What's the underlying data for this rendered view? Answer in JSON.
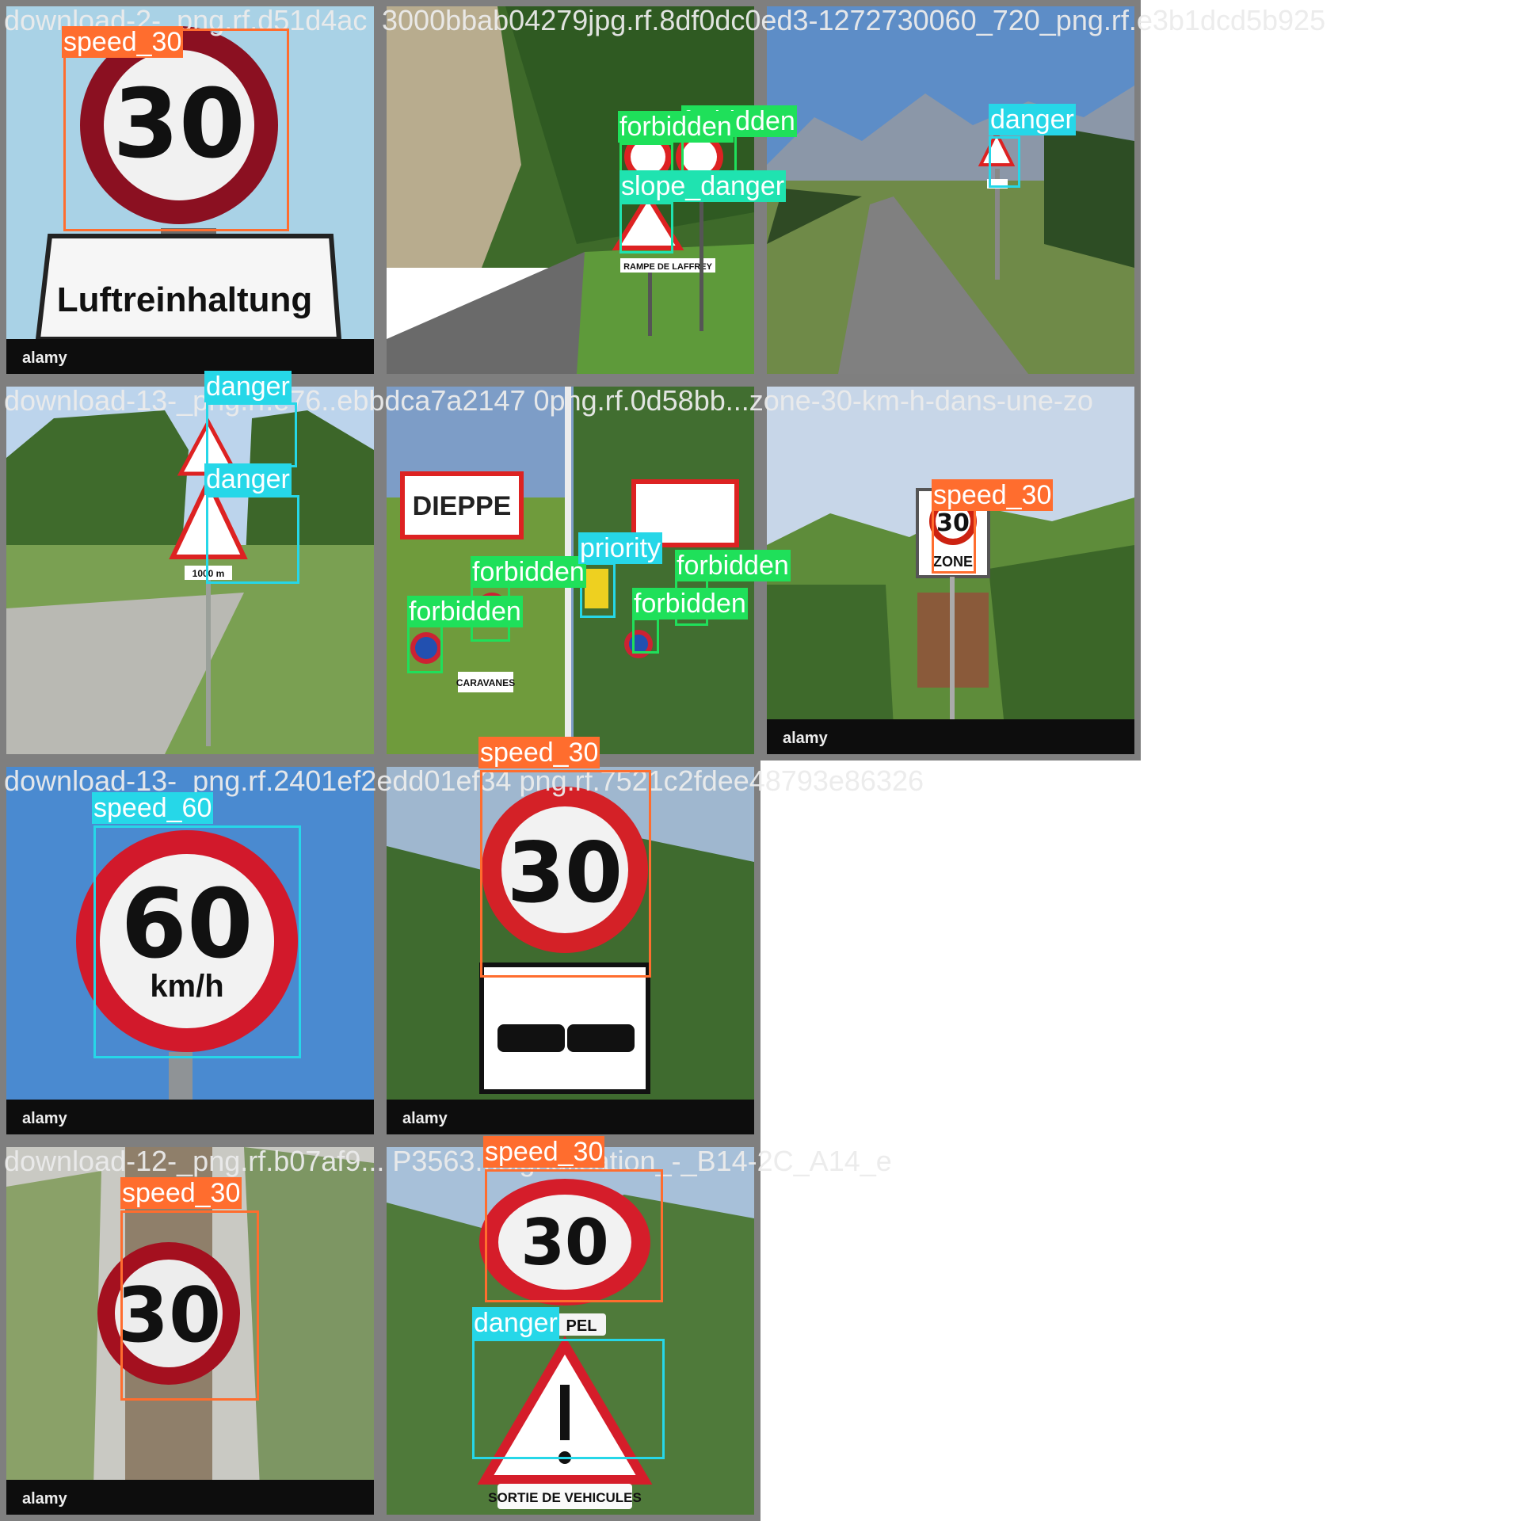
{
  "captions": [
    "download-2-_png.rf.d51d4ac",
    "3000bbab04279jpg.rf.8df0dc0ed3-1272730060_720_png.rf.e3b1dcd5b925",
    "download-13-_png.rf.e76..ebbdca7a2147 0png.rf.0d58bb...zone-30-km-h-dans-une-zo",
    "download-13-_png.rf.2401ef2edd01ef34 png.rf.7521c2fdee48793e86326",
    "download-12-_png.rf.b07af9... P3563...signalisation_-_B14-2C_A14_e"
  ],
  "labels": {
    "speed_30": "speed_30",
    "speed_60": "speed_60",
    "forbidden": "forbidden",
    "slope_danger": "slope_danger",
    "danger": "danger",
    "priority": "priority"
  },
  "sign_text": {
    "luft": "Luftreinhaltung",
    "alamy": "alamy",
    "thirty": "30",
    "sixty": "60",
    "kmh": "km/h",
    "zone": "ZONE",
    "dieppe": "DIEPPE",
    "rampe": "RAMPE DE LAFFREY",
    "dist": "1000 m",
    "pel": "PEL",
    "sortie": "SORTIE DE VEHICULES",
    "caravanes": "CARAVANES"
  },
  "colors": {
    "speed_30": "#ff6d2e",
    "danger": "#26d7e8",
    "forbidden": "#1fe05a",
    "slope_danger": "#1fe3b0"
  }
}
